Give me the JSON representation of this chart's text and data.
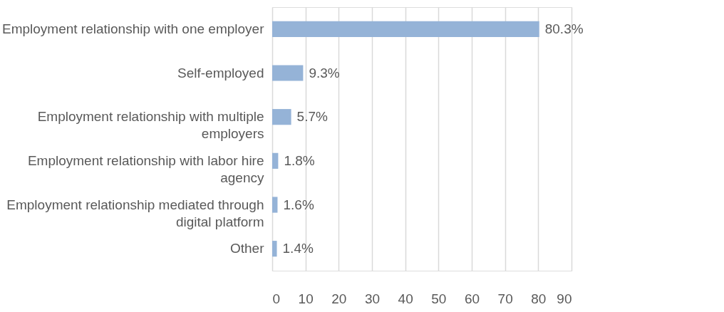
{
  "chart_data": {
    "type": "bar",
    "orientation": "horizontal",
    "categories": [
      "Employment relationship with one employer",
      "Self-employed",
      "Employment relationship with multiple employers",
      "Employment relationship with labor hire agency",
      "Employment relationship mediated through digital platform",
      "Other"
    ],
    "values": [
      80.3,
      9.3,
      5.7,
      1.8,
      1.6,
      1.4
    ],
    "value_labels": [
      "80.3%",
      "9.3%",
      "5.7%",
      "1.8%",
      "1.6%",
      "1.4%"
    ],
    "color": "#95b3d7",
    "xlim": [
      0,
      90
    ],
    "xticks": [
      0,
      10,
      20,
      30,
      40,
      50,
      60,
      70,
      80,
      90
    ],
    "grid": "x"
  }
}
